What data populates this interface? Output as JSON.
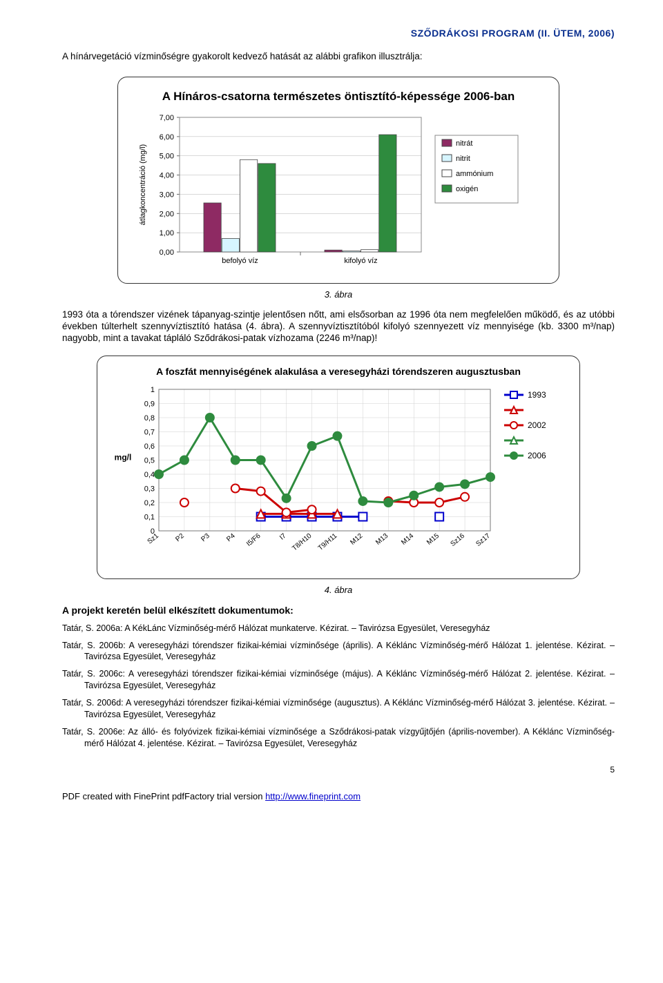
{
  "header": {
    "text": "SZŐDRÁKOSI PROGRAM (II. ÜTEM, 2006)",
    "color": "#0a2f8f"
  },
  "intro": "A hínárvegetáció vízminőségre gyakorolt kedvező hatását az alábbi grafikon illusztrálja:",
  "chart1": {
    "title": "A Hínáros-csatorna természetes öntisztító-képessége 2006-ban",
    "ylabel": "átlagkoncentráció (mg/l)",
    "ylim": [
      0,
      7
    ],
    "ytick_step": 1,
    "yticks": [
      "0,00",
      "1,00",
      "2,00",
      "3,00",
      "4,00",
      "5,00",
      "6,00",
      "7,00"
    ],
    "categories": [
      "befolyó víz",
      "kifolyó víz"
    ],
    "series": [
      {
        "name": "nitrát",
        "color": "#8e2a63",
        "values": [
          2.55,
          0.1
        ]
      },
      {
        "name": "nitrit",
        "color": "#d6f5ff",
        "values": [
          0.7,
          0.05
        ]
      },
      {
        "name": "ammónium",
        "color": "#ffffff",
        "values": [
          4.8,
          0.12
        ]
      },
      {
        "name": "oxigén",
        "color": "#2e8b3e",
        "values": [
          4.6,
          6.1
        ]
      }
    ],
    "bar_border": "#444444",
    "grid_color": "#c0c0c0",
    "label_fontsize": 11,
    "title_fontsize": 17,
    "background_color": "#ffffff"
  },
  "fig3": "3. ábra",
  "para1": "1993 óta a tórendszer vizének tápanyag-szintje jelentősen nőtt, ami elsősorban az 1996 óta nem megfelelően működő, és az utóbbi években túlterhelt szennyvíztisztító hatása (4. ábra). A szennyvíztisztítóból kifolyó szennyezett víz mennyisége (kb. 3300 m³/nap) nagyobb, mint a tavakat tápláló Sződrákosi-patak vízhozama (2246 m³/nap)!",
  "chart2": {
    "title": "A foszfát mennyiségének alakulása a veresegyházi tórendszeren augusztusban",
    "ylabel": "mg/l",
    "ylim": [
      0,
      1
    ],
    "ytick_step": 0.1,
    "yticks": [
      "0",
      "0,1",
      "0,2",
      "0,3",
      "0,4",
      "0,5",
      "0,6",
      "0,7",
      "0,8",
      "0,9",
      "1"
    ],
    "xlabels": [
      "Sz1",
      "P2",
      "P3",
      "P4",
      "I5/F6",
      "I7",
      "T8/H10",
      "T9/H11",
      "M12",
      "M13",
      "M14",
      "M15",
      "Sz16",
      "Sz17"
    ],
    "series": [
      {
        "name": "1993",
        "color": "#0000cc",
        "marker": "square-open",
        "values": [
          null,
          null,
          null,
          null,
          0.1,
          0.1,
          0.1,
          0.1,
          0.1,
          null,
          null,
          0.1,
          null,
          null
        ]
      },
      {
        "name": "",
        "color": "#cc0000",
        "marker": "triangle-open",
        "values": [
          null,
          null,
          null,
          null,
          0.12,
          0.12,
          0.12,
          0.12,
          null,
          null,
          null,
          null,
          null,
          null
        ]
      },
      {
        "name": "2002",
        "color": "#cc0000",
        "marker": "circle-open",
        "values": [
          null,
          0.2,
          null,
          0.3,
          0.28,
          0.13,
          0.15,
          null,
          null,
          0.21,
          0.2,
          0.2,
          0.24,
          null
        ]
      },
      {
        "name": "",
        "color": "#2e8b3e",
        "marker": "triangle-open",
        "values": [
          null,
          null,
          null,
          null,
          null,
          null,
          null,
          null,
          null,
          null,
          null,
          null,
          null,
          null
        ]
      },
      {
        "name": "2006",
        "color": "#2e8b3e",
        "marker": "circle-filled",
        "values": [
          0.4,
          0.5,
          0.8,
          0.5,
          0.5,
          0.23,
          0.6,
          0.67,
          0.21,
          0.2,
          0.25,
          0.31,
          0.33,
          0.38
        ]
      }
    ],
    "grid_color": "#d0d0d0",
    "axis_color": "#777777",
    "label_fontsize": 11,
    "line_width": 3,
    "marker_size": 6
  },
  "fig4": "4. ábra",
  "docs_head": "A projekt keretén belül elkészített dokumentumok:",
  "refs": [
    "Tatár, S. 2006a: A KékLánc Vízminőség-mérő Hálózat munkaterve. Kézirat. – Tavirózsa Egyesület, Veresegyház",
    "Tatár, S. 2006b: A veresegyházi tórendszer fizikai-kémiai vízminősége (április). A Kéklánc Vízminőség-mérő Hálózat 1. jelentése. Kézirat. – Tavirózsa Egyesület, Veresegyház",
    "Tatár, S. 2006c: A veresegyházi tórendszer fizikai-kémiai vízminősége (május). A Kéklánc Vízminőség-mérő Hálózat 2. jelentése. Kézirat. – Tavirózsa Egyesület, Veresegyház",
    "Tatár, S. 2006d: A veresegyházi tórendszer fizikai-kémiai vízminősége (augusztus). A Kéklánc Vízminőség-mérő Hálózat 3. jelentése. Kézirat. – Tavirózsa Egyesület, Veresegyház",
    "Tatár, S. 2006e: Az álló- és folyóvizek fizikai-kémiai vízminősége a Sződrákosi-patak vízgyűjtőjén (április-november). A Kéklánc Vízminőség-mérő Hálózat 4. jelentése. Kézirat. – Tavirózsa Egyesület, Veresegyház"
  ],
  "page_num": "5",
  "footer": {
    "prefix": "PDF created with FinePrint pdfFactory trial version ",
    "link": "http://www.fineprint.com"
  }
}
